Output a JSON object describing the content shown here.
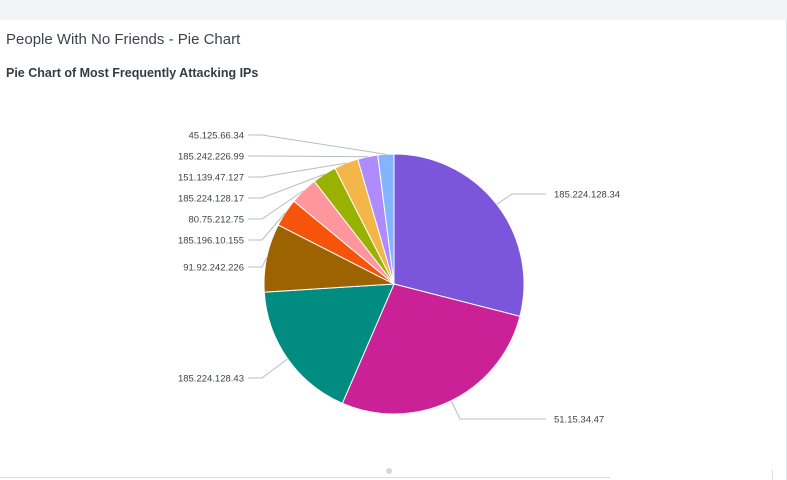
{
  "dashboard": {
    "panel_title": "People With No Friends - Pie Chart"
  },
  "chart_data": {
    "type": "pie",
    "title": "Pie Chart of Most Frequently Attacking IPs",
    "start_angle_deg": 0,
    "direction": "clockwise",
    "slices": [
      {
        "label": "185.224.128.34",
        "value": 29.0,
        "color": "#7b56db"
      },
      {
        "label": "51.15.34.47",
        "value": 27.5,
        "color": "#cb2196"
      },
      {
        "label": "185.224.128.43",
        "value": 17.5,
        "color": "#008c80"
      },
      {
        "label": "91.92.242.226",
        "value": 8.5,
        "color": "#9d6300"
      },
      {
        "label": "185.196.10.155",
        "value": 3.5,
        "color": "#f6540b"
      },
      {
        "label": "80.75.212.75",
        "value": 3.5,
        "color": "#ff969e"
      },
      {
        "label": "185.224.128.17",
        "value": 3.0,
        "color": "#99b100"
      },
      {
        "label": "151.139.47.127",
        "value": 3.0,
        "color": "#f4b649"
      },
      {
        "label": "185.242.226.99",
        "value": 2.5,
        "color": "#ae8bff"
      },
      {
        "label": "45.125.66.34",
        "value": 2.0,
        "color": "#85b4ff"
      }
    ]
  }
}
